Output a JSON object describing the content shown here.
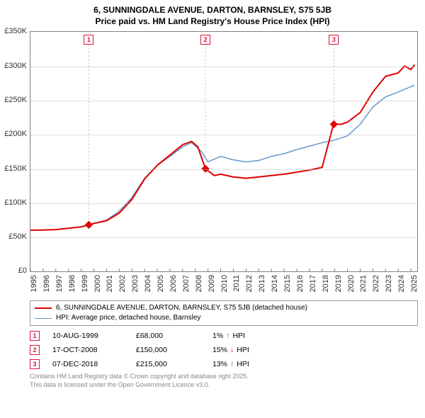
{
  "title_line1": "6, SUNNINGDALE AVENUE, DARTON, BARNSLEY, S75 5JB",
  "title_line2": "Price paid vs. HM Land Registry's House Price Index (HPI)",
  "chart": {
    "type": "line",
    "x_min": 1995.0,
    "x_max": 2025.5,
    "y_min": 0,
    "y_max": 350000,
    "y_ticks": [
      0,
      50000,
      100000,
      150000,
      200000,
      250000,
      300000,
      350000
    ],
    "y_tick_labels": [
      "£0",
      "£50K",
      "£100K",
      "£150K",
      "£200K",
      "£250K",
      "£300K",
      "£350K"
    ],
    "x_ticks": [
      1995,
      1996,
      1997,
      1998,
      1999,
      2000,
      2001,
      2002,
      2003,
      2004,
      2005,
      2006,
      2007,
      2008,
      2009,
      2010,
      2011,
      2012,
      2013,
      2014,
      2015,
      2016,
      2017,
      2018,
      2019,
      2020,
      2021,
      2022,
      2023,
      2024,
      2025
    ],
    "grid_color": "#c0c0c0",
    "background_color": "#ffffff",
    "series": {
      "price_paid": {
        "color": "#e00000",
        "width": 2,
        "points": [
          [
            1995.0,
            60000
          ],
          [
            1996.0,
            60500
          ],
          [
            1997.0,
            61000
          ],
          [
            1998.0,
            63000
          ],
          [
            1999.0,
            65000
          ],
          [
            1999.6,
            68000
          ],
          [
            2000.0,
            70000
          ],
          [
            2001.0,
            74000
          ],
          [
            2002.0,
            85000
          ],
          [
            2003.0,
            105000
          ],
          [
            2004.0,
            135000
          ],
          [
            2005.0,
            155000
          ],
          [
            2006.0,
            170000
          ],
          [
            2007.0,
            185000
          ],
          [
            2007.7,
            190000
          ],
          [
            2008.2,
            182000
          ],
          [
            2008.8,
            150000
          ],
          [
            2009.5,
            140000
          ],
          [
            2010.0,
            142000
          ],
          [
            2011.0,
            138000
          ],
          [
            2012.0,
            136000
          ],
          [
            2013.0,
            138000
          ],
          [
            2014.0,
            140000
          ],
          [
            2015.0,
            142000
          ],
          [
            2016.0,
            145000
          ],
          [
            2017.0,
            148000
          ],
          [
            2018.0,
            152000
          ],
          [
            2018.9,
            215000
          ],
          [
            2019.5,
            215000
          ],
          [
            2020.0,
            218000
          ],
          [
            2021.0,
            232000
          ],
          [
            2022.0,
            262000
          ],
          [
            2023.0,
            285000
          ],
          [
            2024.0,
            290000
          ],
          [
            2024.5,
            300000
          ],
          [
            2025.0,
            295000
          ],
          [
            2025.3,
            302000
          ]
        ]
      },
      "hpi": {
        "color": "#6699cc",
        "width": 1.5,
        "points": [
          [
            1995.0,
            60000
          ],
          [
            1996.0,
            60000
          ],
          [
            1997.0,
            61000
          ],
          [
            1998.0,
            63000
          ],
          [
            1999.0,
            65000
          ],
          [
            2000.0,
            70000
          ],
          [
            2001.0,
            75000
          ],
          [
            2002.0,
            88000
          ],
          [
            2003.0,
            108000
          ],
          [
            2004.0,
            136000
          ],
          [
            2005.0,
            155000
          ],
          [
            2006.0,
            168000
          ],
          [
            2007.0,
            182000
          ],
          [
            2007.7,
            188000
          ],
          [
            2008.5,
            175000
          ],
          [
            2009.0,
            160000
          ],
          [
            2010.0,
            168000
          ],
          [
            2011.0,
            163000
          ],
          [
            2012.0,
            160000
          ],
          [
            2013.0,
            162000
          ],
          [
            2014.0,
            168000
          ],
          [
            2015.0,
            172000
          ],
          [
            2016.0,
            178000
          ],
          [
            2017.0,
            183000
          ],
          [
            2018.0,
            188000
          ],
          [
            2019.0,
            192000
          ],
          [
            2020.0,
            198000
          ],
          [
            2021.0,
            215000
          ],
          [
            2022.0,
            240000
          ],
          [
            2023.0,
            255000
          ],
          [
            2024.0,
            262000
          ],
          [
            2025.0,
            270000
          ],
          [
            2025.3,
            272000
          ]
        ]
      }
    },
    "sale_markers": [
      {
        "n": "1",
        "x": 1999.6,
        "y": 68000
      },
      {
        "n": "2",
        "x": 2008.8,
        "y": 150000
      },
      {
        "n": "3",
        "x": 2018.93,
        "y": 215000
      }
    ],
    "marker_box_color": "#dc143c"
  },
  "legend": {
    "series1": {
      "label": "6, SUNNINGDALE AVENUE, DARTON, BARNSLEY, S75 5JB (detached house)",
      "color": "#e00000"
    },
    "series2": {
      "label": "HPI: Average price, detached house, Barnsley",
      "color": "#6699cc"
    }
  },
  "sales": [
    {
      "n": "1",
      "date": "10-AUG-1999",
      "price": "£68,000",
      "diff_pct": "1%",
      "arrow": "↑",
      "arrow_color": "#1a8f1a",
      "suffix": "HPI"
    },
    {
      "n": "2",
      "date": "17-OCT-2008",
      "price": "£150,000",
      "diff_pct": "15%",
      "arrow": "↓",
      "arrow_color": "#cc0000",
      "suffix": "HPI"
    },
    {
      "n": "3",
      "date": "07-DEC-2018",
      "price": "£215,000",
      "diff_pct": "13%",
      "arrow": "↑",
      "arrow_color": "#1a8f1a",
      "suffix": "HPI"
    }
  ],
  "footer": {
    "line1": "Contains HM Land Registry data © Crown copyright and database right 2025.",
    "line2": "This data is licensed under the Open Government Licence v3.0."
  }
}
